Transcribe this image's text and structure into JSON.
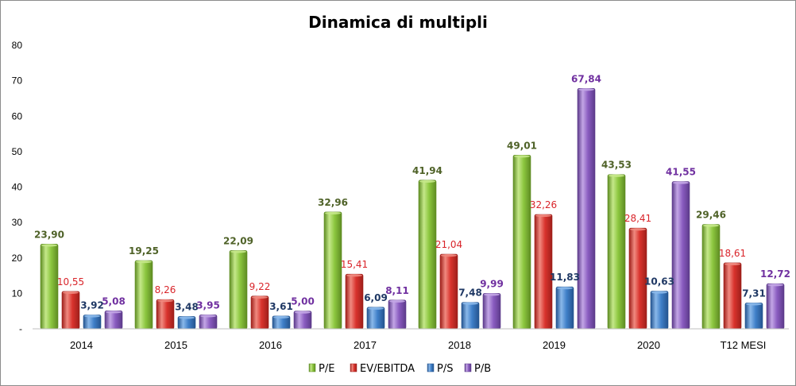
{
  "chart_data": {
    "type": "bar",
    "title": "Dinamica di multipli",
    "categories": [
      "2014",
      "2015",
      "2016",
      "2017",
      "2018",
      "2019",
      "2020",
      "T12 MESI"
    ],
    "yticks": [
      "-",
      "10",
      "20",
      "30",
      "40",
      "50",
      "60",
      "70",
      "80"
    ],
    "ylim": [
      0,
      80
    ],
    "grid": false,
    "legend_position": "bottom",
    "series": [
      {
        "name": "P/E",
        "values": [
          23.9,
          19.25,
          22.09,
          32.96,
          41.94,
          49.01,
          43.53,
          29.46
        ],
        "labels": [
          "23,90",
          "19,25",
          "22,09",
          "32,96",
          "41,94",
          "49,01",
          "43,53",
          "29,46"
        ],
        "color": "#8cc63f",
        "color_light": "#c5e88a",
        "color_dark": "#5e8c22",
        "label_color": "#4f6228",
        "label_bold": true
      },
      {
        "name": "EV/EBITDA",
        "values": [
          10.55,
          8.26,
          9.22,
          15.41,
          21.04,
          32.26,
          28.41,
          18.61
        ],
        "labels": [
          "10,55",
          "8,26",
          "9,22",
          "15,41",
          "21,04",
          "32,26",
          "28,41",
          "18,61"
        ],
        "color": "#d9332d",
        "color_light": "#f08a80",
        "color_dark": "#9e1f1a",
        "label_color": "#d9242a",
        "label_bold": false
      },
      {
        "name": "P/S",
        "values": [
          3.92,
          3.48,
          3.61,
          6.09,
          7.48,
          11.83,
          10.63,
          7.31
        ],
        "labels": [
          "3,92",
          "3,48",
          "3,61",
          "6,09",
          "7,48",
          "11,83",
          "10,63",
          "7,31"
        ],
        "color": "#3f7fc8",
        "color_light": "#8ab8ea",
        "color_dark": "#24548f",
        "label_color": "#1f3864",
        "label_bold": true
      },
      {
        "name": "P/B",
        "values": [
          5.08,
          3.95,
          5.0,
          8.11,
          9.99,
          67.84,
          41.55,
          12.72
        ],
        "labels": [
          "5,08",
          "3,95",
          "5,00",
          "8,11",
          "9,99",
          "67,84",
          "41,55",
          "12,72"
        ],
        "color": "#8a5cc0",
        "color_light": "#c3a6e6",
        "color_dark": "#5c3a8a",
        "label_color": "#7030a0",
        "label_bold": true
      }
    ]
  }
}
